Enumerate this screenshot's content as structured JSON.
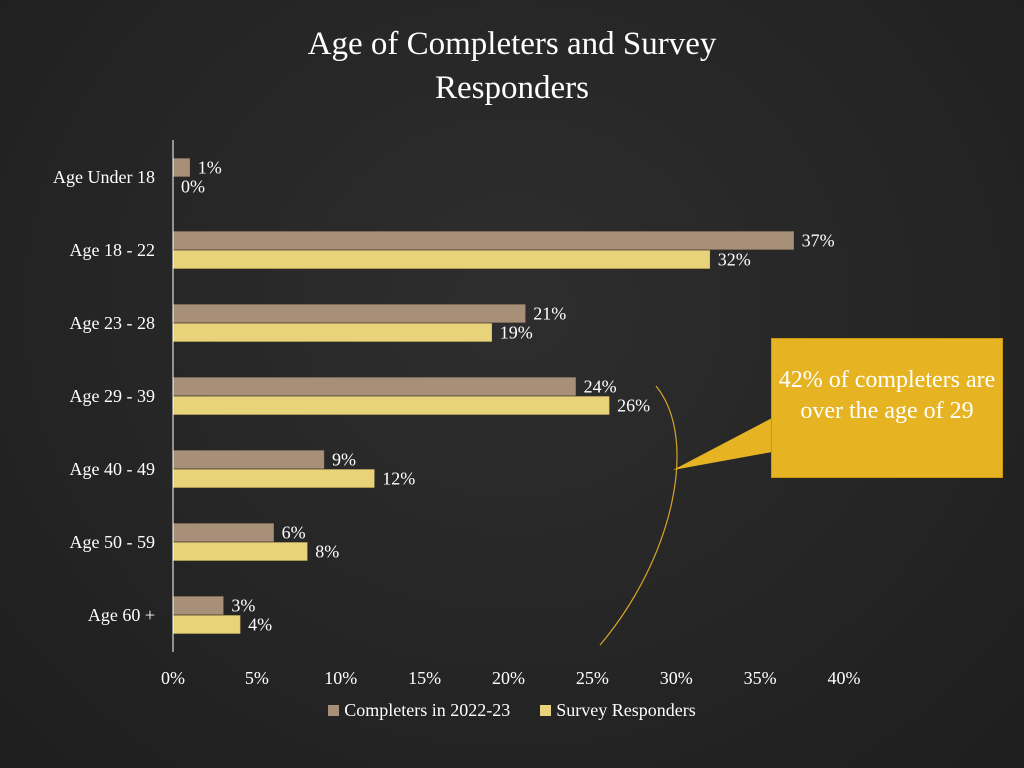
{
  "colors": {
    "background": "#262626",
    "completers": "#a89078",
    "responders": "#e8d27a",
    "callout": "#e6b422",
    "bracket": "#d4a62a"
  },
  "chart_data": {
    "type": "bar",
    "orientation": "horizontal",
    "title_lines": [
      "Age of Completers and Survey",
      "Responders"
    ],
    "categories": [
      "Age Under 18",
      "Age 18 - 22",
      "Age 23 - 28",
      "Age 29 - 39",
      "Age 40 - 49",
      "Age 50 - 59",
      "Age 60 +"
    ],
    "series": [
      {
        "name": "Completers in 2022-23",
        "values": [
          1,
          37,
          21,
          24,
          9,
          6,
          3
        ],
        "labels": [
          "1%",
          "37%",
          "21%",
          "24%",
          "9%",
          "6%",
          "3%"
        ]
      },
      {
        "name": "Survey Responders",
        "values": [
          0,
          32,
          19,
          26,
          12,
          8,
          4
        ],
        "labels": [
          "0%",
          "32%",
          "19%",
          "26%",
          "12%",
          "8%",
          "4%"
        ]
      }
    ],
    "xlim": [
      0,
      40
    ],
    "xticks": [
      0,
      5,
      10,
      15,
      20,
      25,
      30,
      35,
      40
    ],
    "xtick_labels": [
      "0%",
      "5%",
      "10%",
      "15%",
      "20%",
      "25%",
      "30%",
      "35%",
      "40%"
    ],
    "grid": false,
    "legend_position": "bottom",
    "annotation": "42% of completers are over the age of 29"
  }
}
